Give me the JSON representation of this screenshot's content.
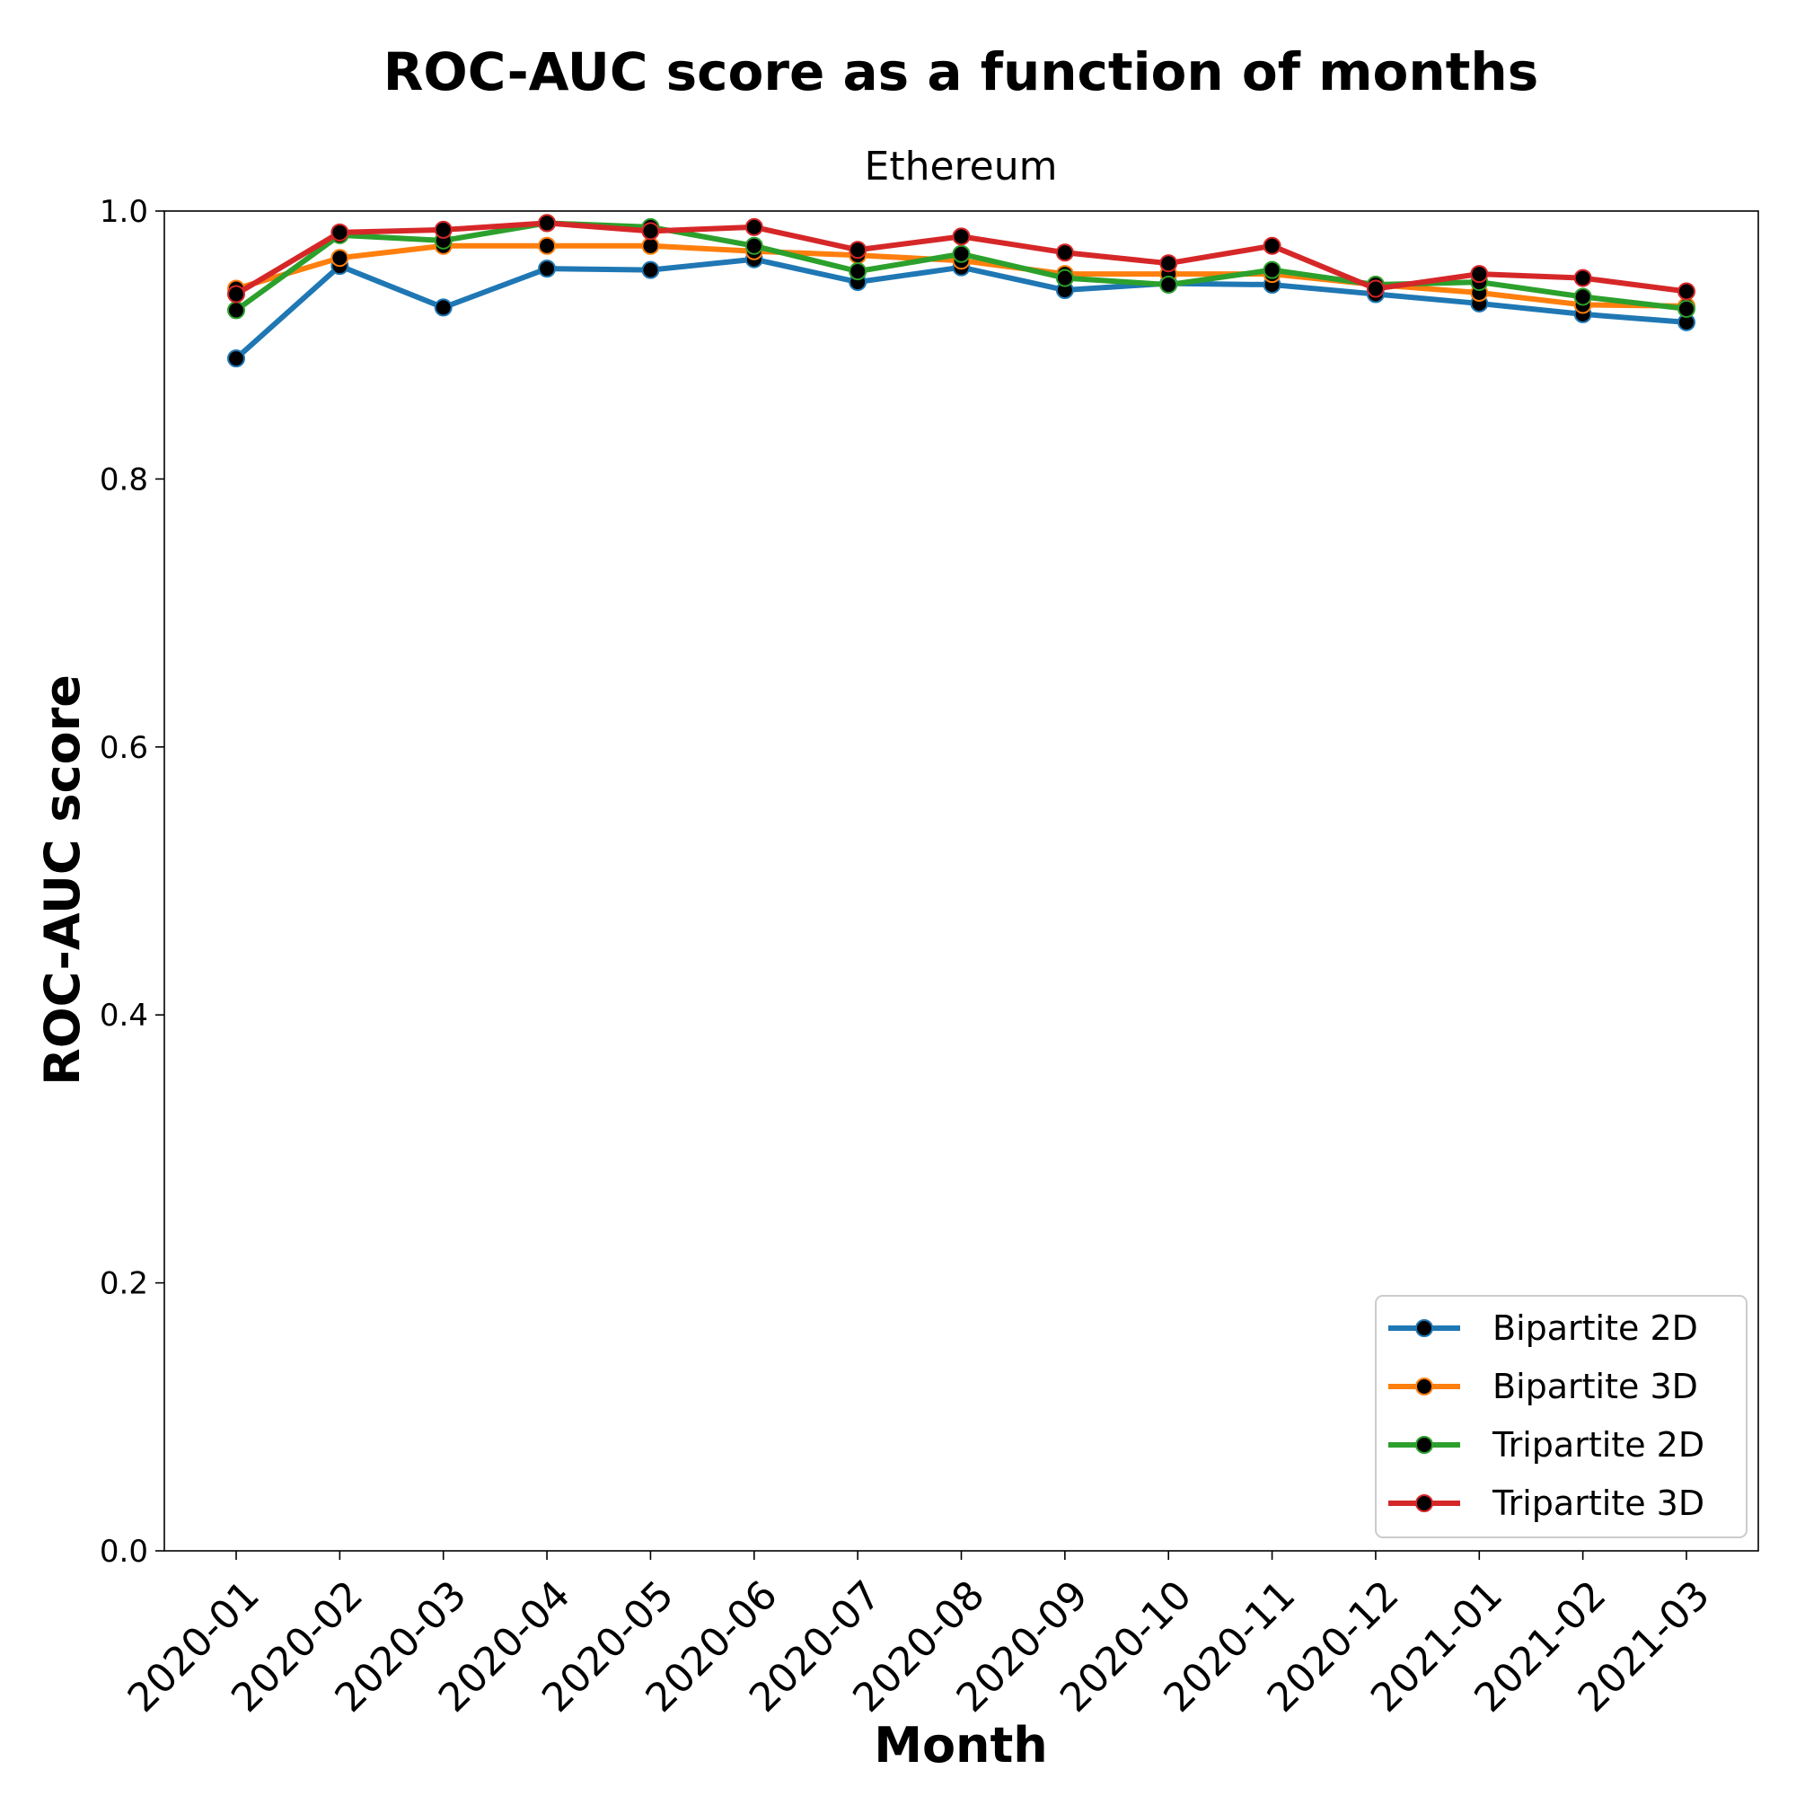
{
  "chart_data": {
    "type": "line",
    "title": "ROC-AUC score as a function of months",
    "subtitle": "Ethereum",
    "xlabel": "Month",
    "ylabel": "ROC-AUC score",
    "ylim": [
      0.0,
      1.0
    ],
    "yticks": [
      "0.0",
      "0.2",
      "0.4",
      "0.6",
      "0.8",
      "1.0"
    ],
    "categories": [
      "2020-01",
      "2020-02",
      "2020-03",
      "2020-04",
      "2020-05",
      "2020-06",
      "2020-07",
      "2020-08",
      "2020-09",
      "2020-10",
      "2020-11",
      "2020-12",
      "2021-01",
      "2021-02",
      "2021-03"
    ],
    "legend_position": "bottom-right",
    "grid": false,
    "marker_color": "#000000",
    "series": [
      {
        "name": "Bipartite 2D",
        "color": "#1f77b4",
        "values": [
          0.89,
          0.959,
          0.928,
          0.957,
          0.956,
          0.964,
          0.947,
          0.958,
          0.941,
          0.946,
          0.945,
          0.938,
          0.931,
          0.923,
          0.917
        ]
      },
      {
        "name": "Bipartite 3D",
        "color": "#ff7f0e",
        "values": [
          0.942,
          0.965,
          0.974,
          0.974,
          0.974,
          0.97,
          0.967,
          0.963,
          0.953,
          0.953,
          0.953,
          0.945,
          0.939,
          0.93,
          0.929
        ]
      },
      {
        "name": "Tripartite 2D",
        "color": "#2ca02c",
        "values": [
          0.926,
          0.982,
          0.978,
          0.991,
          0.988,
          0.974,
          0.955,
          0.968,
          0.95,
          0.945,
          0.956,
          0.945,
          0.947,
          0.936,
          0.927
        ]
      },
      {
        "name": "Tripartite 3D",
        "color": "#d62728",
        "values": [
          0.938,
          0.984,
          0.986,
          0.991,
          0.985,
          0.988,
          0.971,
          0.981,
          0.969,
          0.961,
          0.974,
          0.942,
          0.953,
          0.95,
          0.94
        ]
      }
    ]
  }
}
